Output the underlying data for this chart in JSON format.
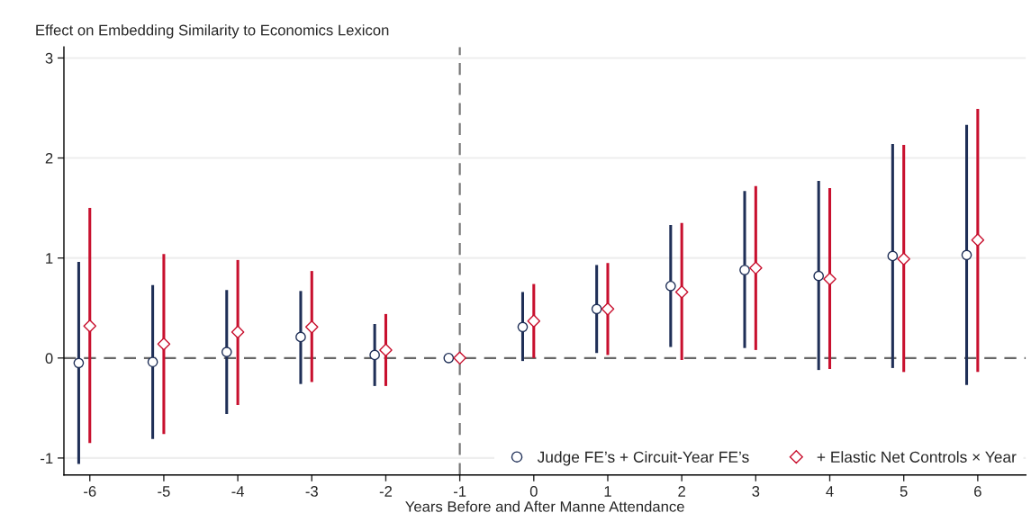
{
  "chart_data": {
    "type": "scatter",
    "ylabel": "Effect on Embedding Similarity to Economics Lexicon",
    "xlabel": "Years Before and After Manne Attendance",
    "series": [
      {
        "name": "Judge FE’s + Circuit-Year FE’s",
        "color": "#1f2f57",
        "marker": "circle",
        "x": [
          -6.15,
          -5.15,
          -4.15,
          -3.15,
          -2.15,
          -1.15,
          -0.15,
          0.85,
          1.85,
          2.85,
          3.85,
          4.85,
          5.85
        ],
        "values": [
          -0.05,
          -0.04,
          0.06,
          0.21,
          0.03,
          0,
          0.31,
          0.49,
          0.72,
          0.88,
          0.82,
          1.02,
          1.03
        ],
        "errors": [
          [
            -1.06,
            0.96
          ],
          [
            -0.81,
            0.73
          ],
          [
            -0.56,
            0.68
          ],
          [
            -0.26,
            0.67
          ],
          [
            -0.28,
            0.34
          ],
          null,
          [
            -0.03,
            0.66
          ],
          [
            0.05,
            0.93
          ],
          [
            0.11,
            1.33
          ],
          [
            0.1,
            1.67
          ],
          [
            -0.12,
            1.77
          ],
          [
            -0.1,
            2.14
          ],
          [
            -0.27,
            2.33
          ]
        ]
      },
      {
        "name": "+ Elastic Net Controls × Year",
        "color": "#c8102e",
        "marker": "diamond",
        "x": [
          -6,
          -5,
          -4,
          -3,
          -2,
          -1,
          0,
          1,
          2,
          3,
          4,
          5,
          6
        ],
        "values": [
          0.32,
          0.14,
          0.26,
          0.31,
          0.08,
          0,
          0.37,
          0.49,
          0.66,
          0.9,
          0.79,
          0.99,
          1.18
        ],
        "errors": [
          [
            -0.85,
            1.5
          ],
          [
            -0.76,
            1.04
          ],
          [
            -0.47,
            0.98
          ],
          [
            -0.24,
            0.87
          ],
          [
            -0.28,
            0.44
          ],
          null,
          [
            0,
            0.74
          ],
          [
            0.03,
            0.95
          ],
          [
            -0.02,
            1.35
          ],
          [
            0.08,
            1.72
          ],
          [
            -0.11,
            1.7
          ],
          [
            -0.14,
            2.13
          ],
          [
            -0.14,
            2.49
          ]
        ]
      }
    ],
    "xlim": [
      -6.35,
      6.65
    ],
    "xticks": [
      -6,
      -5,
      -4,
      -3,
      -2,
      -1,
      0,
      1,
      2,
      3,
      4,
      5,
      6
    ],
    "ylim": [
      -1.17,
      3.11
    ],
    "yticks": [
      -1,
      0,
      1,
      2,
      3
    ],
    "grid": "y",
    "legend": "bottom right",
    "ref_lines": [
      {
        "axis": "y",
        "value": 0,
        "color": "#666666",
        "line_style": "dashed"
      },
      {
        "axis": "x",
        "value": -1,
        "color": "#777777",
        "line_style": "dashed"
      }
    ]
  }
}
